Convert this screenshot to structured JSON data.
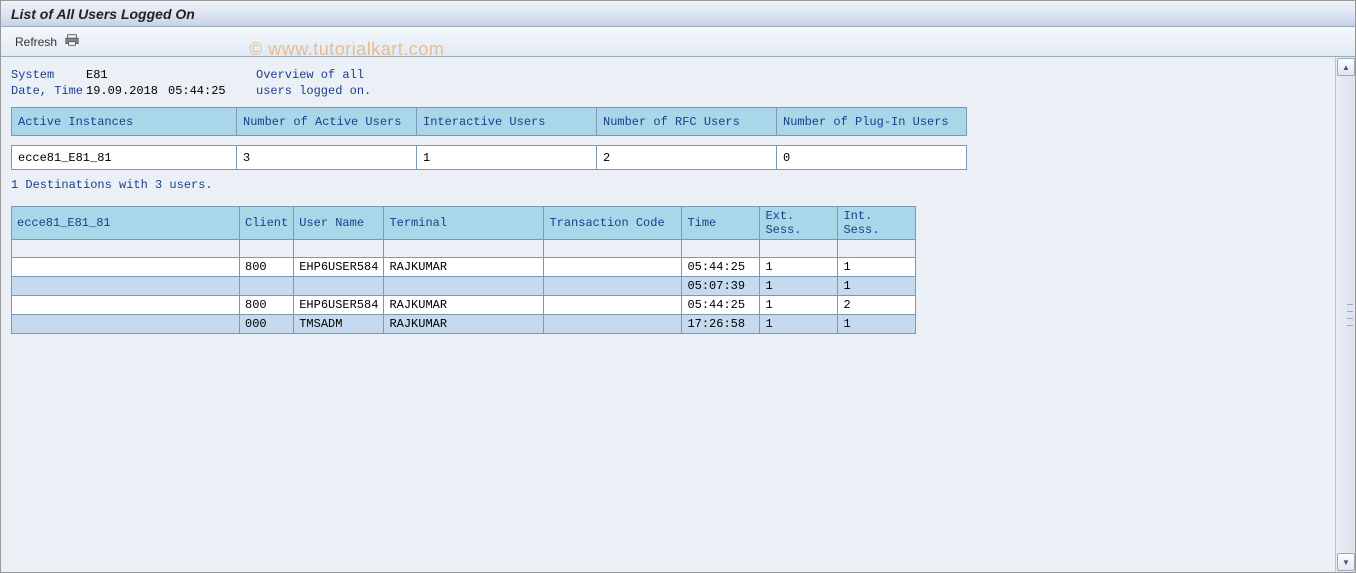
{
  "title": "List of All Users Logged On",
  "toolbar": {
    "refresh_label": "Refresh"
  },
  "watermark": "© www.tutorialkart.com",
  "meta": {
    "system_label": "System",
    "system_value": "E81",
    "datetime_label": "Date, Time",
    "date_value": "19.09.2018",
    "time_value": "05:44:25",
    "desc_line1": "Overview of all",
    "desc_line2": "users logged on."
  },
  "summary": {
    "columns": {
      "active_instances": "Active Instances",
      "num_active_users": "Number of Active Users",
      "interactive_users": "Interactive Users",
      "num_rfc_users": "Number of RFC Users",
      "num_plugin_users": "Number of Plug-In Users"
    },
    "widths": {
      "c1": 225,
      "c2": 180,
      "c3": 180,
      "c4": 180,
      "c5": 190
    },
    "row": {
      "instance": "ecce81_E81_81",
      "active_users": "3",
      "interactive_users": "1",
      "rfc_users": "2",
      "plugin_users": "0"
    }
  },
  "destinations_line": "1 Destinations with 3 users.",
  "detail": {
    "columns": {
      "instance": "ecce81_E81_81",
      "client": "Client",
      "user": "User Name",
      "terminal": "Terminal",
      "tcode": "Transaction Code",
      "time": "Time",
      "ext": "Ext. Sess.",
      "int": "Int. Sess."
    },
    "widths": {
      "c1": 228,
      "c2": 50,
      "c3": 86,
      "c4": 160,
      "c5": 138,
      "c6": 78,
      "c7": 78,
      "c8": 78
    },
    "rows": [
      {
        "alt": false,
        "client": "800",
        "user": "EHP6USER584",
        "terminal": "RAJKUMAR",
        "tcode": "",
        "time": "05:44:25",
        "ext": "1",
        "int": "1"
      },
      {
        "alt": true,
        "client": "",
        "user": "",
        "terminal": "",
        "tcode": "",
        "time": "05:07:39",
        "ext": "1",
        "int": "1"
      },
      {
        "alt": false,
        "client": "800",
        "user": "EHP6USER584",
        "terminal": "RAJKUMAR",
        "tcode": "",
        "time": "05:44:25",
        "ext": "1",
        "int": "2"
      },
      {
        "alt": true,
        "client": "000",
        "user": "TMSADM",
        "terminal": "RAJKUMAR",
        "tcode": "",
        "time": "17:26:58",
        "ext": "1",
        "int": "1"
      }
    ]
  },
  "colors": {
    "header_bg": "#a9d6e8",
    "header_fg": "#1a3f8c",
    "border": "#7a99b8",
    "row_alt": "#c5daef",
    "row_norm": "#ffffff",
    "page_bg": "#eaf0f6"
  }
}
